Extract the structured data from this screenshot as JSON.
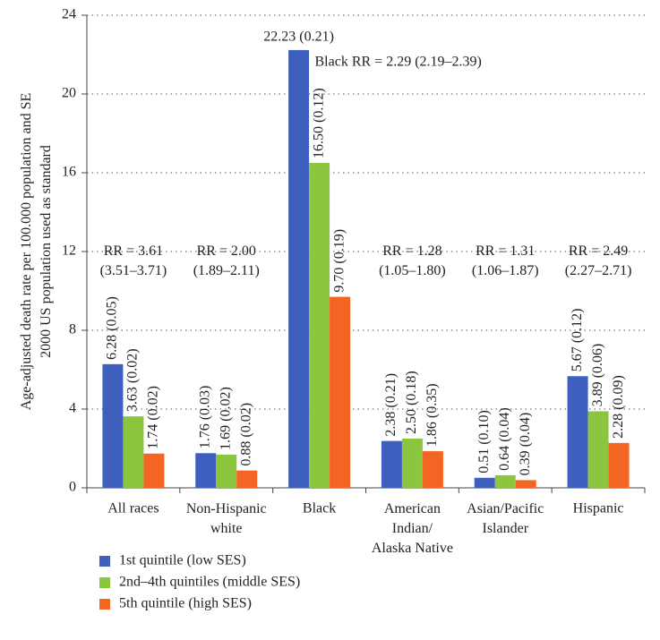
{
  "chart_data": {
    "type": "bar",
    "y_label": "Age-adjusted death rate per 100.000 population and SE\n2000 US population used as standard",
    "categories": [
      "All races",
      "Non-Hispanic\nwhite",
      "Black",
      "American\nIndian/\nAlaska Native",
      "Asian/Pacific\nIslander",
      "Hispanic"
    ],
    "rr_labels": [
      "RR = 3.61\n(3.51–3.71)",
      "RR = 2.00\n(1.89–2.11)",
      "Black RR = 2.29 (2.19–2.39)",
      "RR = 1.28\n(1.05–1.80)",
      "RR = 1.31\n(1.06–1.87)",
      "RR = 2.49\n(2.27–2.71)"
    ],
    "series": [
      {
        "name": "1st quintile (low SES)",
        "color": "#3f5fbf",
        "values": [
          6.28,
          1.76,
          22.23,
          2.38,
          0.51,
          5.67
        ],
        "value_labels": [
          "6.28 (0.05)",
          "1.76 (0.03)",
          "22.23 (0.21)",
          "2.38 (0.21)",
          "0.51 (0.10)",
          "5.67 (0.12)"
        ]
      },
      {
        "name": "2nd–4th quintiles (middle SES)",
        "color": "#8cc63f",
        "values": [
          3.63,
          1.69,
          16.5,
          2.5,
          0.64,
          3.89
        ],
        "value_labels": [
          "3.63 (0.02)",
          "1.69 (0.02)",
          "16.50 (0.12)",
          "2.50 (0.18)",
          "0.64 (0.04)",
          "3.89 (0.06)"
        ]
      },
      {
        "name": "5th quintile (high SES)",
        "color": "#f26522",
        "values": [
          1.74,
          0.88,
          9.7,
          1.86,
          0.39,
          2.28
        ],
        "value_labels": [
          "1.74 (0.02)",
          "0.88 (0.02)",
          "9.70 (0.19)",
          "1.86 (0.35)",
          "0.39 (0.04)",
          "2.28 (0.09)"
        ]
      }
    ],
    "ylim": [
      0,
      24
    ],
    "yticks": [
      0,
      4,
      8,
      12,
      16,
      20,
      24
    ],
    "grid": true
  }
}
